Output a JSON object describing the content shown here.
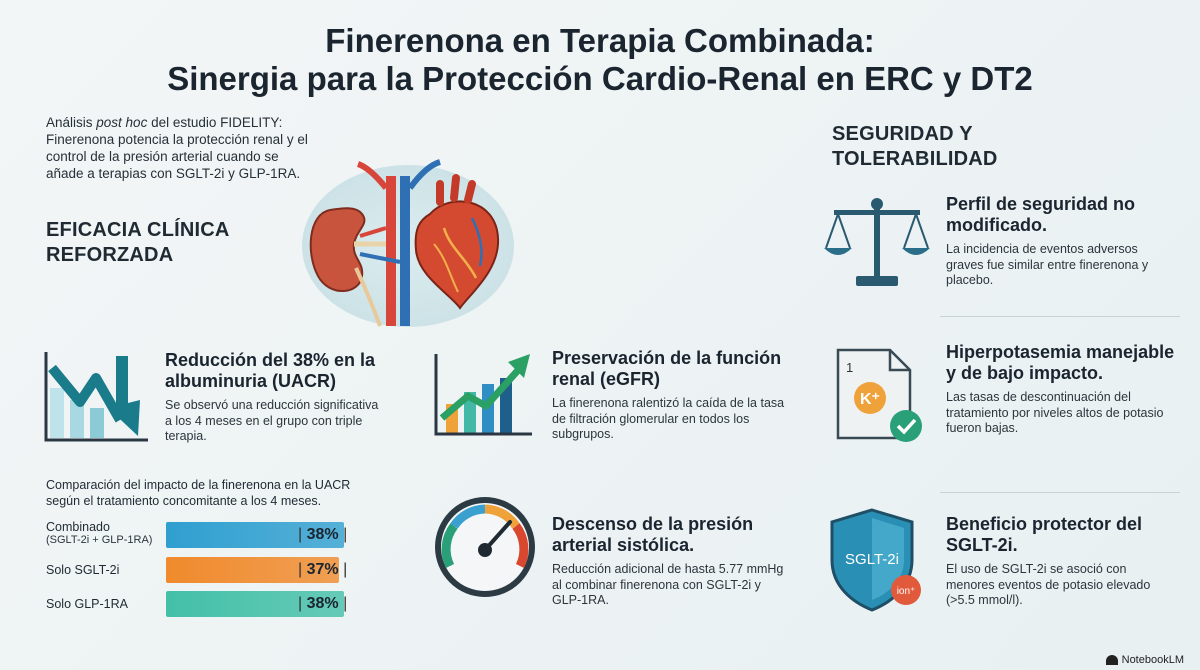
{
  "header": {
    "title_line1": "Finerenona en Terapia Combinada:",
    "title_line2": "Sinergia para la Protección Cardio-Renal en ERC y DT2"
  },
  "intro": {
    "prefix": "Análisis ",
    "emphasis": "post hoc",
    "rest": " del estudio FIDELITY: Finerenona potencia la protección renal y el control de la presión arterial cuando se añade a terapias con SGLT-2i y GLP-1RA."
  },
  "efficacy": {
    "heading_line1": "EFICACIA CLÍNICA",
    "heading_line2": "REFORZADA",
    "cards": [
      {
        "title": "Reducción del 38% en la albuminuria (UACR)",
        "text": "Se observó una reducción significativa a los 4 meses en el grupo con triple terapia."
      },
      {
        "title": "Preservación de la función renal (eGFR)",
        "text": "La finerenona ralentizó la caída de la tasa de filtración glomerular en todos los subgrupos."
      },
      {
        "title": "Descenso de la presión arterial sistólica.",
        "text": "Reducción adicional de hasta 5.77 mmHg al combinar finerenona con SGLT-2i y GLP-1RA."
      }
    ]
  },
  "chart_data": {
    "type": "bar",
    "title": "Comparación del impacto de la finerenona en la UACR según el tratamiento concomitante a los 4 meses.",
    "categories": [
      "Combinado",
      "Solo SGLT-2i",
      "Solo GLP-1RA"
    ],
    "category_sublabels": [
      "(SGLT-2i + GLP-1RA)",
      "",
      ""
    ],
    "values": [
      38,
      37,
      38
    ],
    "value_labels": [
      "38%",
      "37%",
      "38%"
    ],
    "colors": [
      "#2f9fd0",
      "#f08a2c",
      "#43c0a8"
    ],
    "orientation": "horizontal"
  },
  "safety": {
    "heading_line1": "SEGURIDAD Y",
    "heading_line2": "TOLERABILIDAD",
    "cards": [
      {
        "title": "Perfil de seguridad no modificado.",
        "text": "La incidencia de eventos adversos graves fue similar entre finerenona y placebo."
      },
      {
        "title": "Hiperpotasemia manejable y de bajo impacto.",
        "text": "Las tasas de descontinuación del tratamiento por niveles altos de potasio fueron bajas."
      },
      {
        "title": "Beneficio protector del SGLT-2i.",
        "text": "El uso de SGLT-2i se asoció con menores eventos de potasio elevado (>5.5 mmol/l)."
      }
    ],
    "icon_labels": {
      "k": "K⁺",
      "one": "1",
      "shield": "SGLT-2i",
      "ion": "ion⁺"
    }
  },
  "brand": {
    "name": "NotebookLM"
  },
  "icons": [
    "kidney-heart-illustration",
    "declining-chart-icon",
    "rising-chart-icon",
    "gauge-icon",
    "balance-scale-icon",
    "potassium-document-icon",
    "shield-icon",
    "notebooklm-logo-icon"
  ]
}
